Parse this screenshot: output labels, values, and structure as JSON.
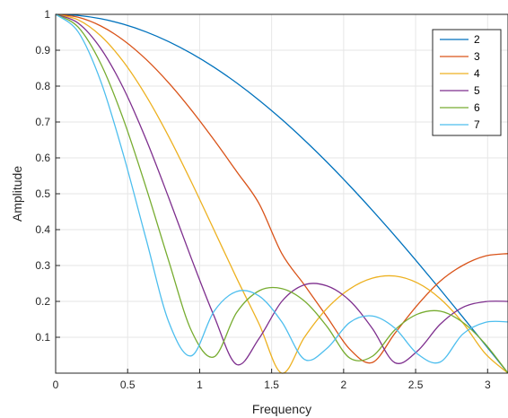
{
  "chart_data": {
    "type": "line",
    "title": "",
    "xlabel": "Frequency",
    "ylabel": "Amplitude",
    "xlim": [
      0,
      3.14159
    ],
    "ylim": [
      0,
      1
    ],
    "grid": true,
    "legend_position": "top-right",
    "x_ticks": [
      0,
      0.5,
      1,
      1.5,
      2,
      2.5,
      3
    ],
    "x_tick_labels": [
      "0",
      "0.5",
      "1",
      "1.5",
      "2",
      "2.5",
      "3"
    ],
    "y_ticks": [
      0.1,
      0.2,
      0.3,
      0.4,
      0.5,
      0.6,
      0.7,
      0.8,
      0.9,
      1
    ],
    "y_tick_labels": [
      "0.1",
      "0.2",
      "0.3",
      "0.4",
      "0.5",
      "0.6",
      "0.7",
      "0.8",
      "0.9",
      "1"
    ],
    "x": [
      0,
      0.1571,
      0.3142,
      0.4712,
      0.6283,
      0.7854,
      0.9425,
      1.0996,
      1.2566,
      1.4137,
      1.5708,
      1.7279,
      1.885,
      2.042,
      2.1991,
      2.3562,
      2.5133,
      2.6704,
      2.8274,
      2.9845,
      3.1416
    ],
    "series": [
      {
        "name": "2",
        "color": "#0072BD",
        "values": [
          1,
          0.9969,
          0.9877,
          0.9724,
          0.9511,
          0.9239,
          0.891,
          0.8526,
          0.809,
          0.7604,
          0.7071,
          0.6494,
          0.5878,
          0.5225,
          0.454,
          0.3827,
          0.309,
          0.2334,
          0.1564,
          0.0785,
          0
        ]
      },
      {
        "name": "3",
        "color": "#D95319",
        "values": [
          1,
          0.9918,
          0.9675,
          0.9279,
          0.8745,
          0.8089,
          0.7333,
          0.6502,
          0.5622,
          0.4718,
          0.3333,
          0.2457,
          0.1567,
          0.0671,
          0.0296,
          0.1111,
          0.1902,
          0.2562,
          0.3003,
          0.3265,
          0.3333
        ]
      },
      {
        "name": "4",
        "color": "#EDB120",
        "values": [
          1,
          0.9846,
          0.9397,
          0.8678,
          0.7727,
          0.6593,
          0.5328,
          0.3993,
          0.2652,
          0.1363,
          0,
          0.1001,
          0.1807,
          0.2345,
          0.2646,
          0.2706,
          0.2513,
          0.2075,
          0.1404,
          0.0541,
          0
        ]
      },
      {
        "name": "5",
        "color": "#7E2F8E",
        "values": [
          1,
          0.9754,
          0.9045,
          0.7937,
          0.6511,
          0.4888,
          0.3199,
          0.1597,
          0.0243,
          0.0973,
          0.2,
          0.2462,
          0.2431,
          0.2022,
          0.1248,
          0.0291,
          0.0618,
          0.1362,
          0.1832,
          0.1992,
          0.2
        ]
      },
      {
        "name": "6",
        "color": "#77AC30",
        "values": [
          1,
          0.9641,
          0.8619,
          0.7067,
          0.5168,
          0.3127,
          0.1185,
          0.0453,
          0.1687,
          0.2297,
          0.2357,
          0.2009,
          0.1296,
          0.0423,
          0.0469,
          0.1206,
          0.1645,
          0.1727,
          0.1415,
          0.0809,
          0
        ]
      },
      {
        "name": "7",
        "color": "#4DBEEE",
        "values": [
          1,
          0.9508,
          0.8123,
          0.6078,
          0.3735,
          0.1427,
          0.0483,
          0.1722,
          0.2275,
          0.2148,
          0.1429,
          0.0384,
          0.0694,
          0.1411,
          0.1593,
          0.1253,
          0.0535,
          0.0309,
          0.1089,
          0.1417,
          0.1429
        ]
      }
    ]
  }
}
